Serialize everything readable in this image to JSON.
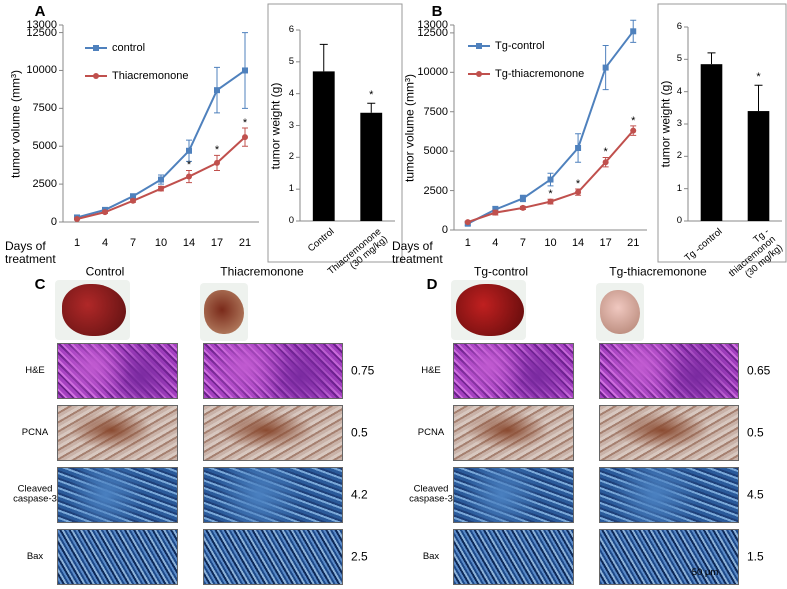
{
  "chart_data": [
    {
      "type": "line",
      "y_label": "tumor volume (mm³)",
      "x_label": "Days of treatment",
      "categories": [
        "1",
        "4",
        "7",
        "10",
        "14",
        "17",
        "21"
      ],
      "series": [
        {
          "name": "control",
          "color": "#4f81bd",
          "marker": "square",
          "values": [
            300,
            800,
            1700,
            2800,
            4700,
            8700,
            10000
          ],
          "errors": [
            100,
            100,
            150,
            300,
            700,
            1500,
            2500
          ],
          "significance": [
            null,
            null,
            null,
            null,
            null,
            null,
            null
          ]
        },
        {
          "name": "Thiacremonone",
          "color": "#c0504d",
          "marker": "circle",
          "values": [
            200,
            650,
            1400,
            2200,
            3000,
            3900,
            5600
          ],
          "errors": [
            50,
            80,
            100,
            150,
            400,
            500,
            600
          ],
          "significance": [
            null,
            null,
            null,
            null,
            "*",
            "*",
            "*"
          ]
        }
      ],
      "ylim": [
        0,
        13000
      ],
      "yticks": [
        0,
        2500,
        5000,
        7500,
        10000,
        12500,
        13000
      ]
    },
    {
      "type": "bar",
      "y_label": "tumor weight (g)",
      "categories": [
        "Control",
        "Thiacremonone (30 mg/kg)"
      ],
      "values": [
        4.7,
        3.4
      ],
      "errors": [
        0.85,
        0.3
      ],
      "significance": [
        null,
        "*"
      ],
      "color": "#000000",
      "ylim": [
        0,
        6
      ],
      "yticks": [
        0,
        1,
        2,
        3,
        4,
        5,
        6
      ]
    },
    {
      "type": "line",
      "y_label": "tumor volume (mm³)",
      "x_label": "Days of treatment",
      "categories": [
        "1",
        "4",
        "7",
        "10",
        "14",
        "17",
        "21"
      ],
      "series": [
        {
          "name": "Tg-control",
          "color": "#4f81bd",
          "marker": "square",
          "values": [
            400,
            1300,
            2000,
            3200,
            5200,
            10300,
            12600
          ],
          "errors": [
            100,
            200,
            200,
            400,
            900,
            1400,
            700
          ],
          "significance": [
            null,
            null,
            null,
            null,
            null,
            null,
            null
          ]
        },
        {
          "name": "Tg-thiacremonone",
          "color": "#c0504d",
          "marker": "circle",
          "values": [
            500,
            1100,
            1400,
            1800,
            2400,
            4300,
            6300
          ],
          "errors": [
            50,
            150,
            100,
            150,
            200,
            300,
            300
          ],
          "significance": [
            null,
            null,
            null,
            "*",
            "*",
            "*",
            "*"
          ]
        }
      ],
      "ylim": [
        0,
        13000
      ],
      "yticks": [
        0,
        2500,
        5000,
        7500,
        10000,
        12500,
        13000
      ]
    },
    {
      "type": "bar",
      "y_label": "tumor weight (g)",
      "categories": [
        "Tg -control",
        "Tg -thiacremonon (30 mg/kg)"
      ],
      "values": [
        4.85,
        3.4
      ],
      "errors": [
        0.35,
        0.8
      ],
      "significance": [
        null,
        "*"
      ],
      "color": "#000000",
      "ylim": [
        0,
        6
      ],
      "yticks": [
        0,
        1,
        2,
        3,
        4,
        5,
        6
      ]
    }
  ],
  "panel_labels": [
    "A",
    "B",
    "C",
    "D"
  ],
  "histology": [
    {
      "columns": [
        "Control",
        "Thiacremonone"
      ],
      "rows": [
        {
          "label": "H&E",
          "value": "0.75"
        },
        {
          "label": "PCNA",
          "value": "0.5"
        },
        {
          "label": "Cleaved caspase-3",
          "value": "4.2"
        },
        {
          "label": "Bax",
          "value": "2.5"
        }
      ]
    },
    {
      "columns": [
        "Tg-control",
        "Tg-thiacremonone"
      ],
      "rows": [
        {
          "label": "H&E",
          "value": "0.65"
        },
        {
          "label": "PCNA",
          "value": "0.5"
        },
        {
          "label": "Cleaved caspase-3",
          "value": "4.5"
        },
        {
          "label": "Bax",
          "value": "1.5"
        }
      ],
      "scale_bar": "50 μm"
    }
  ]
}
